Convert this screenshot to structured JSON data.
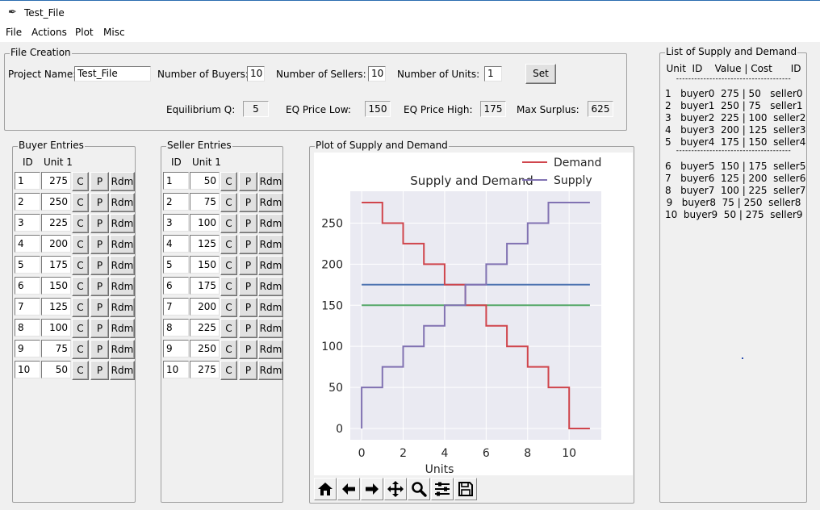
{
  "window": {
    "title": "Test_File"
  },
  "menu": [
    "File",
    "Actions",
    "Plot",
    "Misc"
  ],
  "file_creation": {
    "legend": "File Creation",
    "project_name_label": "Project Name:",
    "project_name_value": "Test_File",
    "num_buyers_label": "Number of Buyers:",
    "num_buyers_value": "10",
    "num_sellers_label": "Number of Sellers:",
    "num_sellers_value": "10",
    "num_units_label": "Number of Units:",
    "num_units_value": "1",
    "set_label": "Set",
    "eq_q_label": "Equilibrium Q:",
    "eq_q_value": "5",
    "eq_price_low_label": "EQ Price Low:",
    "eq_price_low_value": "150",
    "eq_price_high_label": "EQ Price High:",
    "eq_price_high_value": "175",
    "max_surplus_label": "Max Surplus:",
    "max_surplus_value": "625"
  },
  "buyer_entries": {
    "legend": "Buyer Entries",
    "col_id": "ID",
    "col_unit": "Unit 1",
    "btn_c": "C",
    "btn_p": "P",
    "btn_rdm": "Rdm",
    "rows": [
      {
        "id": "1",
        "value": "275"
      },
      {
        "id": "2",
        "value": "250"
      },
      {
        "id": "3",
        "value": "225"
      },
      {
        "id": "4",
        "value": "200"
      },
      {
        "id": "5",
        "value": "175"
      },
      {
        "id": "6",
        "value": "150"
      },
      {
        "id": "7",
        "value": "125"
      },
      {
        "id": "8",
        "value": "100"
      },
      {
        "id": "9",
        "value": "75"
      },
      {
        "id": "10",
        "value": "50"
      }
    ]
  },
  "seller_entries": {
    "legend": "Seller Entries",
    "col_id": "ID",
    "col_unit": "Unit 1",
    "btn_c": "C",
    "btn_p": "P",
    "btn_rdm": "Rdm",
    "rows": [
      {
        "id": "1",
        "value": "50"
      },
      {
        "id": "2",
        "value": "75"
      },
      {
        "id": "3",
        "value": "100"
      },
      {
        "id": "4",
        "value": "125"
      },
      {
        "id": "5",
        "value": "150"
      },
      {
        "id": "6",
        "value": "175"
      },
      {
        "id": "7",
        "value": "200"
      },
      {
        "id": "8",
        "value": "225"
      },
      {
        "id": "9",
        "value": "250"
      },
      {
        "id": "10",
        "value": "275"
      }
    ]
  },
  "plot_frame": {
    "legend": "Plot of Supply and Demand"
  },
  "chart_data": {
    "type": "line",
    "title": "Supply and Demand",
    "xlabel": "Units",
    "ylabel": "",
    "xlim": [
      -0.55,
      11.55
    ],
    "ylim": [
      -13.75,
      288.75
    ],
    "xticks": [
      "0",
      "2",
      "4",
      "6",
      "8",
      "10"
    ],
    "yticks": [
      "0",
      "50",
      "100",
      "150",
      "200",
      "250"
    ],
    "grid": true,
    "legend_position": "top-right",
    "series": [
      {
        "name": "Demand",
        "color": "#d0454c",
        "step": true,
        "x": [
          0,
          1,
          1,
          2,
          2,
          3,
          3,
          4,
          4,
          5,
          5,
          6,
          6,
          7,
          7,
          8,
          8,
          9,
          9,
          10,
          10,
          11
        ],
        "y": [
          275,
          275,
          250,
          250,
          225,
          225,
          200,
          200,
          175,
          175,
          150,
          150,
          125,
          125,
          100,
          100,
          75,
          75,
          50,
          50,
          0,
          0
        ]
      },
      {
        "name": "Supply",
        "color": "#8172b2",
        "step": true,
        "x": [
          0,
          0,
          1,
          1,
          2,
          2,
          3,
          3,
          4,
          4,
          5,
          5,
          6,
          6,
          7,
          7,
          8,
          8,
          9,
          9,
          10,
          11
        ],
        "y": [
          0,
          50,
          50,
          75,
          75,
          100,
          100,
          125,
          125,
          150,
          150,
          175,
          175,
          200,
          200,
          225,
          225,
          250,
          250,
          275,
          275,
          275
        ]
      },
      {
        "name": "",
        "color": "#4c72b0",
        "x": [
          0,
          11
        ],
        "y": [
          175,
          175
        ]
      },
      {
        "name": "",
        "color": "#55a868",
        "x": [
          0,
          11
        ],
        "y": [
          150,
          150
        ]
      }
    ]
  },
  "toolbar": {
    "icons": [
      "home-icon",
      "back-arrow-icon",
      "forward-arrow-icon",
      "pan-icon",
      "zoom-icon",
      "configure-icon",
      "save-icon"
    ]
  },
  "supply_demand_list": {
    "legend": "List of Supply and Demand",
    "header": "Unit  ID    Value | Cost      ID",
    "separator": "--------------------------------------",
    "group1": [
      "1   buyer0  275 | 50   seller0",
      "2   buyer1  250 | 75   seller1",
      "3   buyer2  225 | 100  seller2",
      "4   buyer3  200 | 125  seller3",
      "5   buyer4  175 | 150  seller4"
    ],
    "separator2": "--------------------------------------",
    "group2": [
      "6   buyer5  150 | 175  seller5",
      "7   buyer6  125 | 200  seller6",
      "8   buyer7  100 | 225  seller7",
      "9   buyer8  75 | 250  seller8",
      "10  buyer9  50 | 275  seller9"
    ]
  }
}
